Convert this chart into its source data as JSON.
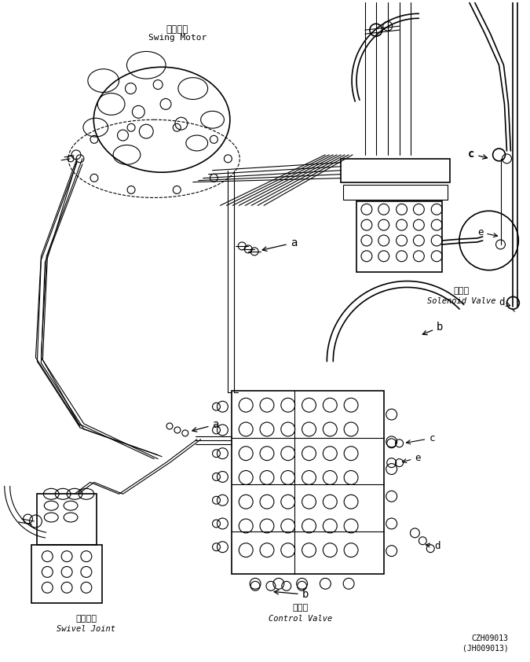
{
  "background_color": "#ffffff",
  "line_color": "#000000",
  "fig_width": 6.75,
  "fig_height": 8.42,
  "dpi": 100,
  "labels": {
    "swing_motor_cn": "回转马达",
    "swing_motor_en": "Swing Motor",
    "solenoid_valve_cn": "电磁阀",
    "solenoid_valve_en": "Solenoid Valve",
    "swivel_joint_cn": "回转接头",
    "swivel_joint_en": "Swivel Joint",
    "control_valve_cn": "控制阀",
    "control_valve_en": "Control Valve",
    "part_code": "CZH09013",
    "part_code2": "(JH009013)"
  }
}
